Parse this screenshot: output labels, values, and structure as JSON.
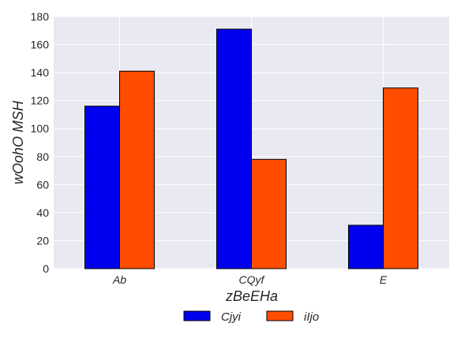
{
  "chart_data": {
    "type": "bar",
    "title": "",
    "xlabel": "zBeEHa",
    "ylabel": "wOohO MSH",
    "categories": [
      "Ab",
      "CQyf",
      "E"
    ],
    "series": [
      {
        "name": "Cjyi",
        "color": "#0000ee",
        "values": [
          116,
          171,
          31
        ]
      },
      {
        "name": "iIjo",
        "color": "#ff4d00",
        "values": [
          141,
          78,
          129
        ]
      }
    ],
    "ylim": [
      0,
      180
    ],
    "yticks": [
      "0",
      "20",
      "40",
      "60",
      "80",
      "100",
      "120",
      "140",
      "160",
      "180"
    ],
    "grid": true,
    "legend_position": "bottom-center",
    "plot_background": "#e9e9f1",
    "grid_color": "#ffffff"
  }
}
